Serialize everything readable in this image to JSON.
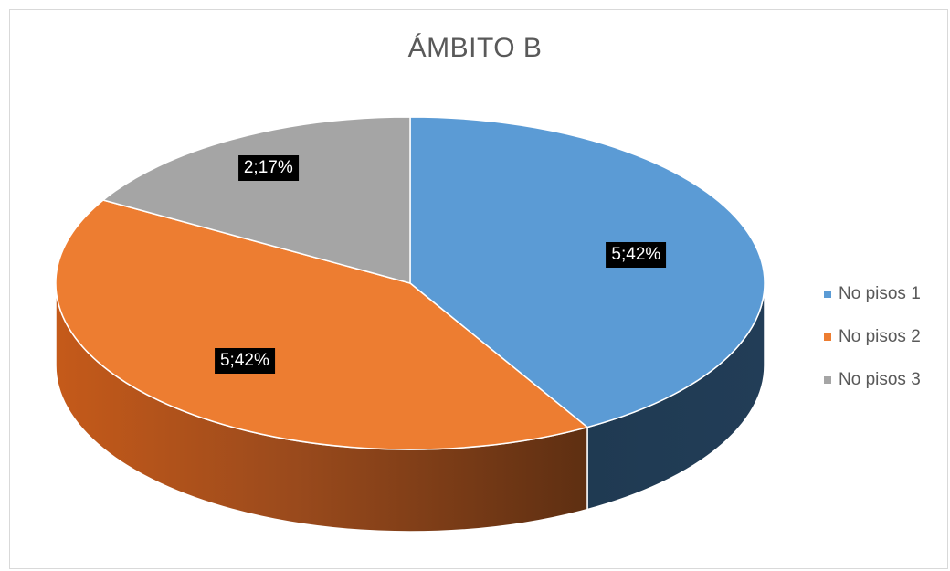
{
  "chart_data": {
    "type": "pie",
    "title": "ÁMBITO B",
    "categories": [
      "No pisos 1",
      "No pisos 2",
      "No pisos 3"
    ],
    "values": [
      5,
      5,
      2
    ],
    "percentages": [
      42,
      42,
      17
    ],
    "data_labels": [
      "5;42%",
      "5;42%",
      "2;17%"
    ],
    "colors": [
      "#5b9bd5",
      "#ed7d31",
      "#a5a5a5"
    ],
    "legend_position": "right",
    "style": "3d"
  }
}
